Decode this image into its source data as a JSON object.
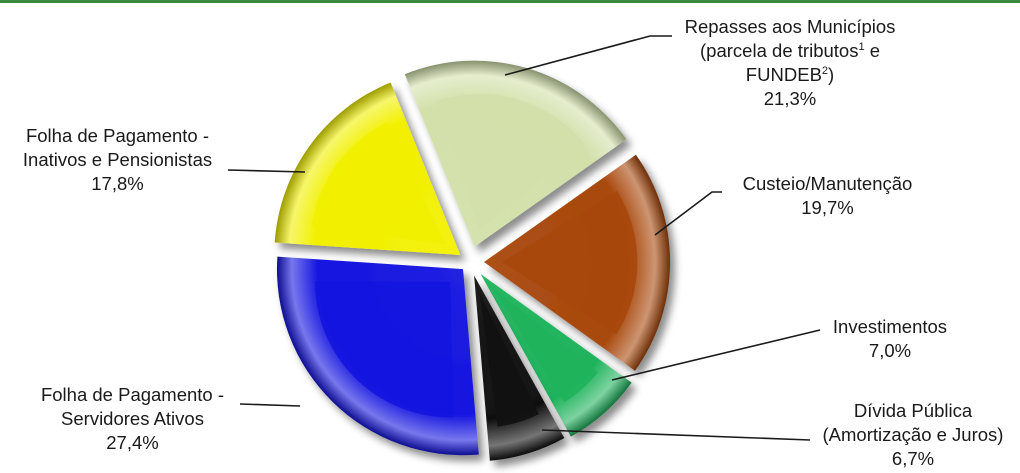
{
  "theme": {
    "rule_color": "#3c8a3c",
    "leader_color": "#1a1a1a"
  },
  "chart_data": {
    "type": "pie",
    "title": "",
    "unit": "%",
    "slices": [
      {
        "key": "repasses",
        "lines": [
          "Repasses aos Municípios",
          "(parcela de tributos¹ e",
          "FUNDEB²)"
        ],
        "value": 21.3,
        "value_label": "21,3%",
        "color": "#d3e0aa"
      },
      {
        "key": "custeio",
        "lines": [
          "Custeio/Manutenção"
        ],
        "value": 19.7,
        "value_label": "19,7%",
        "color": "#a8480c"
      },
      {
        "key": "investimentos",
        "lines": [
          "Investimentos"
        ],
        "value": 7.0,
        "value_label": "7,0%",
        "color": "#1fb35c"
      },
      {
        "key": "divida",
        "lines": [
          "Dívida Pública",
          "(Amortização e Juros)"
        ],
        "value": 6.7,
        "value_label": "6,7%",
        "color": "#111111"
      },
      {
        "key": "ativos",
        "lines": [
          "Folha de Pagamento -",
          "Servidores Ativos"
        ],
        "value": 27.4,
        "value_label": "27,4%",
        "color": "#1515e0"
      },
      {
        "key": "inativos",
        "lines": [
          "Folha de Pagamento -",
          "Inativos e Pensionistas"
        ],
        "value": 17.8,
        "value_label": "17,8%",
        "color": "#f2f000"
      }
    ]
  }
}
